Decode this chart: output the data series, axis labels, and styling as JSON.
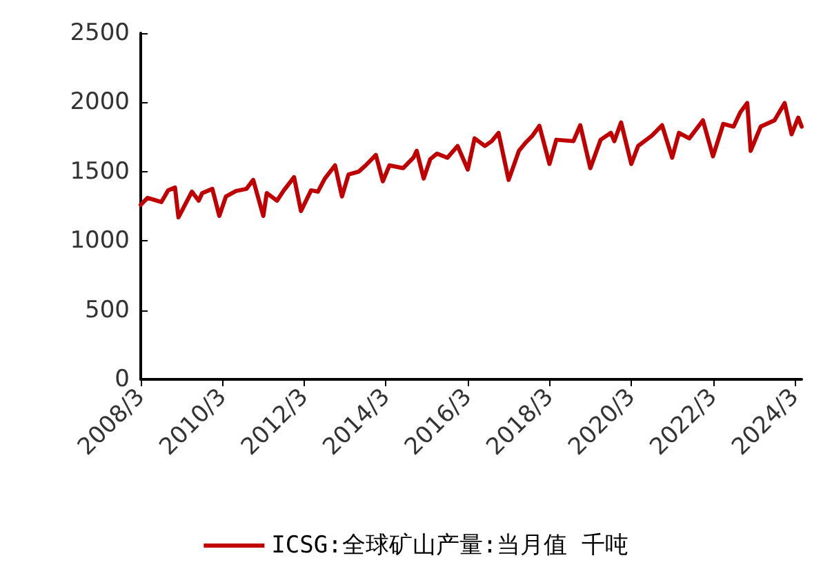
{
  "chart_data": {
    "type": "line",
    "legend": "bottom",
    "grid": false,
    "marker": "none",
    "line_style": "solid",
    "x": [
      "2008-03",
      "2008-05",
      "2008-09",
      "2008-11",
      "2009-01",
      "2009-02",
      "2009-06",
      "2009-08",
      "2009-09",
      "2009-12",
      "2010-02",
      "2010-04",
      "2010-07",
      "2010-10",
      "2010-12",
      "2011-03",
      "2011-04",
      "2011-07",
      "2011-09",
      "2011-12",
      "2012-02",
      "2012-05",
      "2012-07",
      "2012-09",
      "2012-12",
      "2013-02",
      "2013-04",
      "2013-07",
      "2013-09",
      "2013-12",
      "2014-02",
      "2014-04",
      "2014-08",
      "2014-11",
      "2014-12",
      "2015-02",
      "2015-04",
      "2015-06",
      "2015-09",
      "2015-12",
      "2016-03",
      "2016-05",
      "2016-08",
      "2016-10",
      "2016-12",
      "2017-03",
      "2017-06",
      "2017-08",
      "2017-10",
      "2017-12",
      "2018-03",
      "2018-05",
      "2018-10",
      "2018-12",
      "2019-03",
      "2019-06",
      "2019-09",
      "2019-10",
      "2019-12",
      "2020-03",
      "2020-05",
      "2020-09",
      "2020-12",
      "2021-03",
      "2021-05",
      "2021-08",
      "2021-12",
      "2022-03",
      "2022-06",
      "2022-09",
      "2022-11",
      "2023-01",
      "2023-02",
      "2023-05",
      "2023-09",
      "2023-12",
      "2024-02",
      "2024-04",
      "2024-05"
    ],
    "series": [
      {
        "name": "ICSG:全球矿山产量:当月值 千吨",
        "color": "#c00000",
        "values": [
          1260,
          1310,
          1280,
          1365,
          1385,
          1170,
          1355,
          1290,
          1345,
          1375,
          1180,
          1320,
          1360,
          1375,
          1440,
          1180,
          1345,
          1290,
          1365,
          1460,
          1215,
          1365,
          1355,
          1450,
          1545,
          1320,
          1480,
          1500,
          1545,
          1620,
          1430,
          1545,
          1525,
          1600,
          1650,
          1450,
          1590,
          1630,
          1600,
          1685,
          1515,
          1740,
          1685,
          1720,
          1780,
          1440,
          1650,
          1710,
          1760,
          1830,
          1555,
          1730,
          1720,
          1835,
          1525,
          1730,
          1780,
          1720,
          1855,
          1555,
          1685,
          1760,
          1835,
          1600,
          1780,
          1740,
          1870,
          1610,
          1845,
          1825,
          1930,
          1995,
          1650,
          1825,
          1870,
          1995,
          1770,
          1890,
          1825
        ]
      }
    ],
    "xlim": [
      "2008-03",
      "2024-05"
    ],
    "xticks": [
      {
        "value": "2008-03",
        "label": "2008/3"
      },
      {
        "value": "2010-03",
        "label": "2010/3"
      },
      {
        "value": "2012-03",
        "label": "2012/3"
      },
      {
        "value": "2014-03",
        "label": "2014/3"
      },
      {
        "value": "2016-03",
        "label": "2016/3"
      },
      {
        "value": "2018-03",
        "label": "2018/3"
      },
      {
        "value": "2020-03",
        "label": "2020/3"
      },
      {
        "value": "2022-03",
        "label": "2022/3"
      },
      {
        "value": "2024-03",
        "label": "2024/3"
      }
    ],
    "ylim": [
      0,
      2500
    ],
    "yticks": [
      0,
      500,
      1000,
      1500,
      2000,
      2500
    ]
  }
}
